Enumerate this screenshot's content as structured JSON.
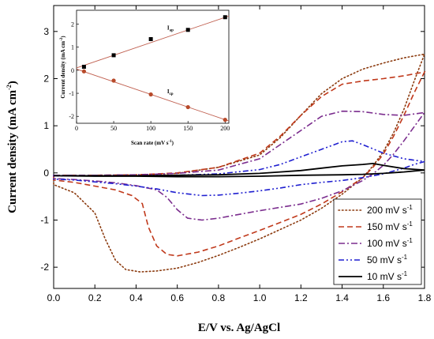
{
  "chart_data": [
    {
      "type": "line",
      "title": "",
      "xlabel": "E/V vs. Ag/AgCl",
      "ylabel_main": "Current density (mA cm",
      "ylabel_sup": "-2",
      "ylabel_close": ")",
      "xlim": [
        0.0,
        1.8
      ],
      "ylim": [
        -2.45,
        3.55
      ],
      "xticks": [
        "0.0",
        "0.2",
        "0.4",
        "0.6",
        "0.8",
        "1.0",
        "1.2",
        "1.4",
        "1.6",
        "1.8"
      ],
      "yticks": [
        "-2",
        "-1",
        "0",
        "1",
        "2",
        "3"
      ],
      "legend": {
        "position": "bottom-right"
      },
      "series": [
        {
          "name": "200 mV s",
          "unit_sup": "-1",
          "color": "#8B3A0E",
          "dash": "dot",
          "forward": [
            [
              0.0,
              -0.06
            ],
            [
              0.2,
              -0.06
            ],
            [
              0.4,
              -0.05
            ],
            [
              0.6,
              -0.01
            ],
            [
              0.8,
              0.12
            ],
            [
              1.0,
              0.38
            ],
            [
              1.1,
              0.75
            ],
            [
              1.2,
              1.22
            ],
            [
              1.3,
              1.68
            ],
            [
              1.4,
              2.0
            ],
            [
              1.5,
              2.2
            ],
            [
              1.6,
              2.33
            ],
            [
              1.7,
              2.44
            ],
            [
              1.8,
              2.52
            ]
          ],
          "reverse": [
            [
              1.8,
              2.52
            ],
            [
              1.75,
              1.95
            ],
            [
              1.7,
              1.35
            ],
            [
              1.65,
              0.85
            ],
            [
              1.6,
              0.45
            ],
            [
              1.55,
              0.15
            ],
            [
              1.5,
              -0.1
            ],
            [
              1.4,
              -0.45
            ],
            [
              1.3,
              -0.75
            ],
            [
              1.2,
              -1.0
            ],
            [
              1.1,
              -1.2
            ],
            [
              1.0,
              -1.4
            ],
            [
              0.9,
              -1.58
            ],
            [
              0.8,
              -1.75
            ],
            [
              0.7,
              -1.9
            ],
            [
              0.6,
              -2.02
            ],
            [
              0.5,
              -2.08
            ],
            [
              0.42,
              -2.1
            ],
            [
              0.35,
              -2.05
            ],
            [
              0.3,
              -1.85
            ],
            [
              0.25,
              -1.4
            ],
            [
              0.2,
              -0.85
            ],
            [
              0.1,
              -0.42
            ],
            [
              0.0,
              -0.25
            ]
          ]
        },
        {
          "name": "150 mV s",
          "unit_sup": "-1",
          "color": "#C0391B",
          "dash": "dash",
          "forward": [
            [
              0.0,
              -0.05
            ],
            [
              0.2,
              -0.05
            ],
            [
              0.4,
              -0.04
            ],
            [
              0.6,
              0.0
            ],
            [
              0.8,
              0.12
            ],
            [
              1.0,
              0.42
            ],
            [
              1.1,
              0.78
            ],
            [
              1.2,
              1.22
            ],
            [
              1.3,
              1.62
            ],
            [
              1.4,
              1.88
            ],
            [
              1.5,
              1.95
            ],
            [
              1.6,
              2.0
            ],
            [
              1.7,
              2.06
            ],
            [
              1.8,
              2.14
            ]
          ],
          "reverse": [
            [
              1.8,
              2.14
            ],
            [
              1.75,
              1.7
            ],
            [
              1.7,
              1.22
            ],
            [
              1.65,
              0.78
            ],
            [
              1.6,
              0.4
            ],
            [
              1.55,
              0.12
            ],
            [
              1.5,
              -0.1
            ],
            [
              1.4,
              -0.4
            ],
            [
              1.3,
              -0.66
            ],
            [
              1.2,
              -0.88
            ],
            [
              1.1,
              -1.05
            ],
            [
              1.0,
              -1.22
            ],
            [
              0.9,
              -1.38
            ],
            [
              0.8,
              -1.55
            ],
            [
              0.7,
              -1.68
            ],
            [
              0.6,
              -1.76
            ],
            [
              0.55,
              -1.73
            ],
            [
              0.5,
              -1.55
            ],
            [
              0.46,
              -1.15
            ],
            [
              0.43,
              -0.65
            ],
            [
              0.38,
              -0.48
            ],
            [
              0.3,
              -0.36
            ],
            [
              0.2,
              -0.28
            ],
            [
              0.1,
              -0.2
            ],
            [
              0.0,
              -0.15
            ]
          ]
        },
        {
          "name": "100 mV s",
          "unit_sup": "-1",
          "color": "#7B2D8E",
          "dash": "dashdot",
          "forward": [
            [
              0.0,
              -0.05
            ],
            [
              0.2,
              -0.05
            ],
            [
              0.4,
              -0.04
            ],
            [
              0.6,
              -0.01
            ],
            [
              0.8,
              0.06
            ],
            [
              1.0,
              0.3
            ],
            [
              1.1,
              0.6
            ],
            [
              1.2,
              0.9
            ],
            [
              1.3,
              1.2
            ],
            [
              1.4,
              1.31
            ],
            [
              1.5,
              1.3
            ],
            [
              1.6,
              1.24
            ],
            [
              1.7,
              1.22
            ],
            [
              1.8,
              1.28
            ]
          ],
          "reverse": [
            [
              1.8,
              1.28
            ],
            [
              1.75,
              0.98
            ],
            [
              1.7,
              0.68
            ],
            [
              1.65,
              0.4
            ],
            [
              1.6,
              0.16
            ],
            [
              1.55,
              -0.02
            ],
            [
              1.5,
              -0.16
            ],
            [
              1.4,
              -0.38
            ],
            [
              1.3,
              -0.54
            ],
            [
              1.2,
              -0.66
            ],
            [
              1.1,
              -0.73
            ],
            [
              1.0,
              -0.8
            ],
            [
              0.9,
              -0.88
            ],
            [
              0.8,
              -0.96
            ],
            [
              0.72,
              -1.0
            ],
            [
              0.65,
              -0.96
            ],
            [
              0.6,
              -0.78
            ],
            [
              0.55,
              -0.52
            ],
            [
              0.5,
              -0.36
            ],
            [
              0.4,
              -0.27
            ],
            [
              0.3,
              -0.21
            ],
            [
              0.2,
              -0.17
            ],
            [
              0.1,
              -0.14
            ],
            [
              0.0,
              -0.12
            ]
          ]
        },
        {
          "name": "50 mV s",
          "unit_sup": "-1",
          "color": "#1F1FD0",
          "dash": "dashdotdot",
          "forward": [
            [
              0.0,
              -0.06
            ],
            [
              0.2,
              -0.06
            ],
            [
              0.4,
              -0.06
            ],
            [
              0.6,
              -0.05
            ],
            [
              0.8,
              -0.02
            ],
            [
              1.0,
              0.07
            ],
            [
              1.1,
              0.18
            ],
            [
              1.2,
              0.34
            ],
            [
              1.3,
              0.5
            ],
            [
              1.4,
              0.66
            ],
            [
              1.45,
              0.68
            ],
            [
              1.5,
              0.6
            ],
            [
              1.6,
              0.42
            ],
            [
              1.7,
              0.3
            ],
            [
              1.8,
              0.24
            ]
          ],
          "reverse": [
            [
              1.8,
              0.24
            ],
            [
              1.75,
              0.18
            ],
            [
              1.7,
              0.1
            ],
            [
              1.6,
              -0.02
            ],
            [
              1.5,
              -0.1
            ],
            [
              1.4,
              -0.16
            ],
            [
              1.3,
              -0.2
            ],
            [
              1.2,
              -0.25
            ],
            [
              1.1,
              -0.32
            ],
            [
              1.0,
              -0.38
            ],
            [
              0.9,
              -0.43
            ],
            [
              0.8,
              -0.47
            ],
            [
              0.72,
              -0.48
            ],
            [
              0.6,
              -0.42
            ],
            [
              0.5,
              -0.34
            ],
            [
              0.4,
              -0.28
            ],
            [
              0.3,
              -0.23
            ],
            [
              0.2,
              -0.19
            ],
            [
              0.1,
              -0.15
            ],
            [
              0.0,
              -0.13
            ]
          ]
        },
        {
          "name": "10 mV s",
          "unit_sup": "-1",
          "color": "#000000",
          "dash": "solid",
          "forward": [
            [
              0.0,
              -0.06
            ],
            [
              0.2,
              -0.06
            ],
            [
              0.4,
              -0.06
            ],
            [
              0.6,
              -0.05
            ],
            [
              0.8,
              -0.04
            ],
            [
              1.0,
              -0.01
            ],
            [
              1.1,
              0.02
            ],
            [
              1.2,
              0.05
            ],
            [
              1.3,
              0.1
            ],
            [
              1.4,
              0.15
            ],
            [
              1.5,
              0.18
            ],
            [
              1.55,
              0.2
            ],
            [
              1.6,
              0.16
            ],
            [
              1.7,
              0.09
            ],
            [
              1.8,
              0.06
            ]
          ],
          "reverse": [
            [
              1.8,
              0.06
            ],
            [
              1.7,
              0.02
            ],
            [
              1.6,
              -0.01
            ],
            [
              1.5,
              -0.03
            ],
            [
              1.4,
              -0.04
            ],
            [
              1.2,
              -0.05
            ],
            [
              1.0,
              -0.07
            ],
            [
              0.8,
              -0.08
            ],
            [
              0.6,
              -0.08
            ],
            [
              0.4,
              -0.07
            ],
            [
              0.2,
              -0.07
            ],
            [
              0.0,
              -0.06
            ]
          ]
        }
      ]
    },
    {
      "type": "scatter",
      "title": "",
      "xlabel": "Scan rate (mV s",
      "xlabel_sup": "-1",
      "xlabel_close": ")",
      "ylabel": "Current density (mA cm",
      "ylabel_sup": "-2",
      "ylabel_close": ")",
      "xlim": [
        0,
        205
      ],
      "ylim": [
        -2.3,
        2.6
      ],
      "xticks": [
        "0",
        "50",
        "100",
        "150",
        "200"
      ],
      "yticks": [
        "-2",
        "-1",
        "0",
        "1",
        "2"
      ],
      "series": [
        {
          "name": "I",
          "subscript": "ap",
          "marker": "square",
          "color": "#000000",
          "line_color": "#C06050",
          "x": [
            10,
            50,
            100,
            150,
            200
          ],
          "y": [
            0.15,
            0.65,
            1.35,
            1.75,
            2.3
          ],
          "fit": [
            [
              0,
              0.1
            ],
            [
              205,
              2.35
            ]
          ]
        },
        {
          "name": "I",
          "subscript": "cp",
          "marker": "circle",
          "color": "#B84A2A",
          "line_color": "#C06050",
          "x": [
            10,
            50,
            100,
            150,
            200
          ],
          "y": [
            -0.05,
            -0.45,
            -1.05,
            -1.6,
            -2.15
          ],
          "fit": [
            [
              0,
              0.05
            ],
            [
              205,
              -2.2
            ]
          ]
        }
      ]
    }
  ]
}
